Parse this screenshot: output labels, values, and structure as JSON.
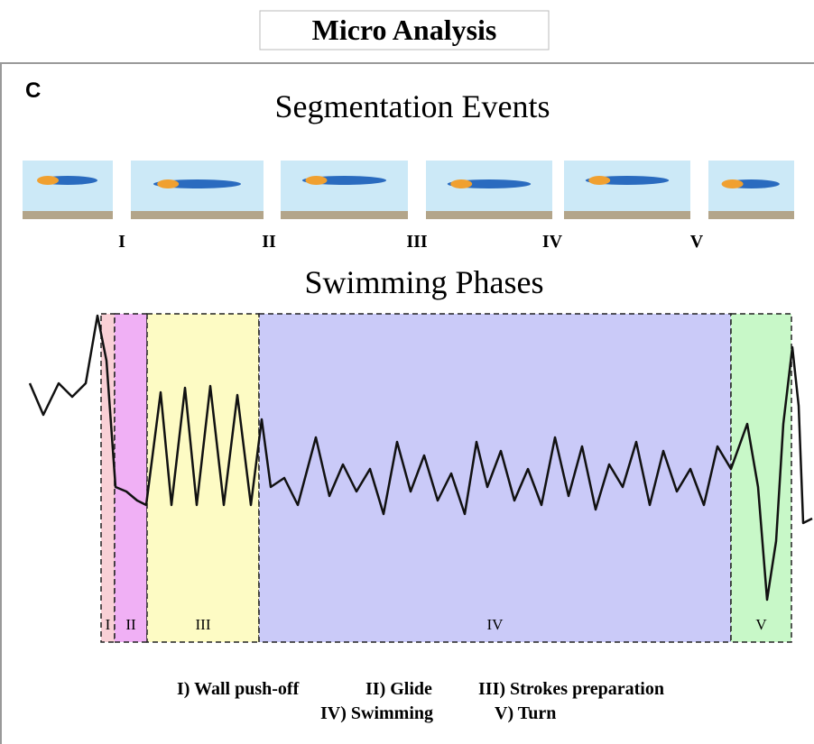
{
  "header": {
    "title": "Micro Analysis"
  },
  "panel_label": "C",
  "segmentation": {
    "title": "Segmentation Events",
    "markers": [
      "I",
      "II",
      "III",
      "IV",
      "V"
    ]
  },
  "phases": {
    "title": "Swimming Phases",
    "regions": [
      "I",
      "II",
      "III",
      "IV",
      "V"
    ]
  },
  "legend": {
    "items": [
      "I) Wall push-off",
      "II) Glide",
      "III) Strokes preparation",
      "IV) Swimming",
      "V) Turn"
    ]
  }
}
